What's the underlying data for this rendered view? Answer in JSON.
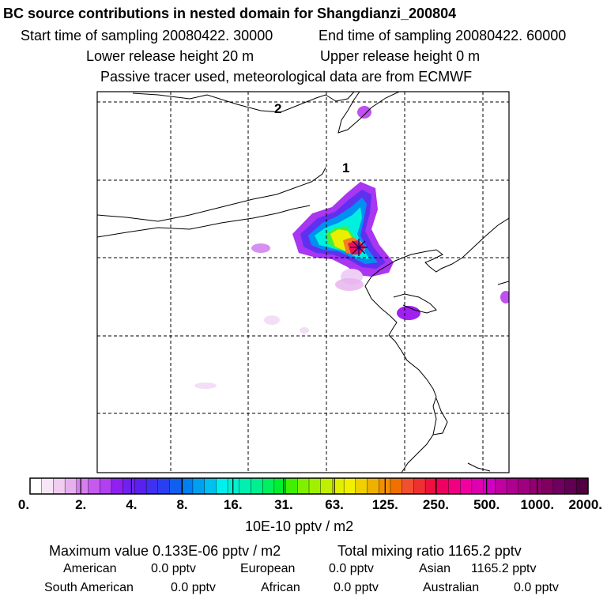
{
  "header": {
    "title": "BC  source contributions in nested domain for Shangdianzi_200804",
    "start_time": "Start time of sampling 20080422. 30000",
    "end_time": "End time of sampling 20080422. 60000",
    "lower_release": "Lower release height   20 m",
    "upper_release": "Upper release height    0 m",
    "tracer_note": "Passive tracer used, meteorological data are from ECMWF"
  },
  "map": {
    "contour_labels": [
      "2",
      "1"
    ],
    "colors": {
      "frame": "#000000",
      "grid": "#000000",
      "coast": "#000000",
      "receptor": "#000080"
    }
  },
  "legend": {
    "ticks": [
      "0.",
      "2.",
      "4.",
      "8.",
      "16.",
      "31.",
      "63.",
      "125.",
      "250.",
      "500.",
      "1000.",
      "2000."
    ],
    "colors": [
      "#ffffff",
      "#f7e6f7",
      "#f0ccf0",
      "#e6b0ee",
      "#d680ee",
      "#c55aee",
      "#b040f0",
      "#9020f0",
      "#7020f0",
      "#5a20f0",
      "#4030f0",
      "#2a40f0",
      "#1060f0",
      "#0080f0",
      "#00a0f0",
      "#00c0f0",
      "#00f0f0",
      "#00f0d0",
      "#00f0b0",
      "#00f090",
      "#00f060",
      "#00f030",
      "#40f000",
      "#80f000",
      "#a0f000",
      "#c0f000",
      "#e0f000",
      "#f0f000",
      "#f0d000",
      "#f0b000",
      "#f09000",
      "#f07000",
      "#f05030",
      "#f03030",
      "#f01040",
      "#f00060",
      "#f00080",
      "#f000a0",
      "#e000b0",
      "#d000c0",
      "#c000a0",
      "#b00090",
      "#a00080",
      "#900070",
      "#800060",
      "#700060",
      "#600050",
      "#500040"
    ],
    "unit": "10E-10 pptv / m2"
  },
  "summary": {
    "max_value": "Maximum value  0.133E-06 pptv / m2",
    "total": "Total mixing ratio      1165.2 pptv",
    "regions": [
      {
        "name": "American",
        "value": "0.0 pptv"
      },
      {
        "name": "European",
        "value": "0.0 pptv"
      },
      {
        "name": "Asian",
        "value": "1165.2 pptv"
      },
      {
        "name": "South American",
        "value": "0.0 pptv"
      },
      {
        "name": "African",
        "value": "0.0 pptv"
      },
      {
        "name": "Australian",
        "value": "0.0 pptv"
      }
    ]
  }
}
